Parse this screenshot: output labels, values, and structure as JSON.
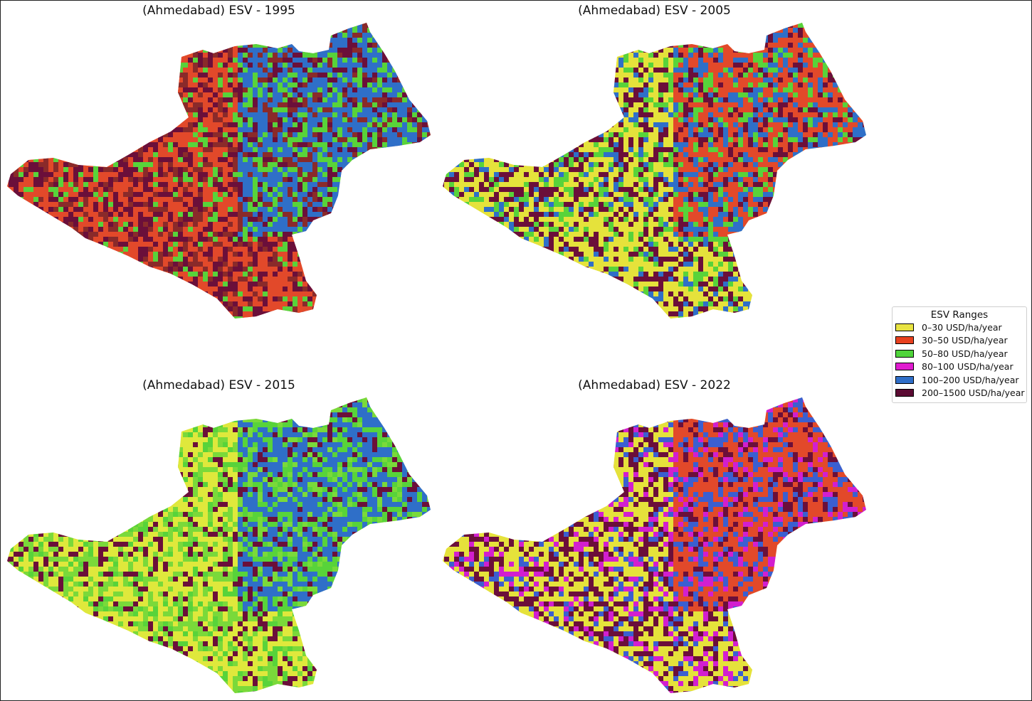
{
  "panels": [
    {
      "title": "(Ahmedabad) ESV - 1995",
      "dominant": [
        "#e2492a",
        "#6b0f3a",
        "#8a2a2a",
        "#58d33a",
        "#2f6fc8"
      ]
    },
    {
      "title": "(Ahmedabad) ESV - 2005",
      "dominant": [
        "#e5e23b",
        "#6b0f3a",
        "#58d33a",
        "#2f6fc8",
        "#e2492a"
      ]
    },
    {
      "title": "(Ahmedabad) ESV - 2015",
      "dominant": [
        "#dfe83c",
        "#7ad93a",
        "#6b0f3a",
        "#58d33a",
        "#2f6fc8"
      ]
    },
    {
      "title": "(Ahmedabad) ESV - 2022",
      "dominant": [
        "#e5e23b",
        "#6b0f3a",
        "#d21fcf",
        "#3b5fd0",
        "#e2492a"
      ]
    }
  ],
  "legend": {
    "title": "ESV Ranges",
    "items": [
      {
        "label": "0–30 USD/ha/year",
        "color": "#e8e342"
      },
      {
        "label": "30–50 USD/ha/year",
        "color": "#e8401f"
      },
      {
        "label": "50–80 USD/ha/year",
        "color": "#4fd43a"
      },
      {
        "label": "80–100 USD/ha/year",
        "color": "#e01bd0"
      },
      {
        "label": "100–200 USD/ha/year",
        "color": "#2f6ec8"
      },
      {
        "label": "200–1500 USD/ha/year",
        "color": "#5a0a32"
      }
    ]
  }
}
